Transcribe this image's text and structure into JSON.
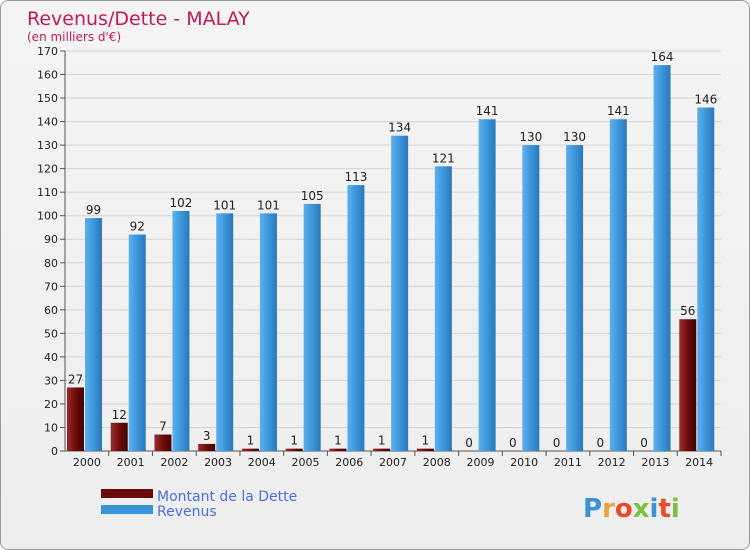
{
  "chart_data": {
    "type": "bar",
    "title": "Revenus/Dette - MALAY",
    "subtitle": "(en milliers d'€)",
    "categories": [
      "2000",
      "2001",
      "2002",
      "2003",
      "2004",
      "2005",
      "2006",
      "2007",
      "2008",
      "2009",
      "2010",
      "2011",
      "2012",
      "2013",
      "2014"
    ],
    "series": [
      {
        "name": "Montant de la Dette",
        "values": [
          27,
          12,
          7,
          3,
          1,
          1,
          1,
          1,
          1,
          0,
          0,
          0,
          0,
          0,
          56
        ],
        "color": "#6b0a0a"
      },
      {
        "name": "Revenus",
        "values": [
          99,
          92,
          102,
          101,
          101,
          105,
          113,
          134,
          121,
          141,
          130,
          130,
          141,
          164,
          146
        ],
        "color": "#3a93d8"
      }
    ],
    "ylim": [
      0,
      170
    ],
    "yticks": [
      0,
      10,
      20,
      30,
      40,
      50,
      60,
      70,
      80,
      90,
      100,
      110,
      120,
      130,
      140,
      150,
      160,
      170
    ],
    "grid": true,
    "legend_position": "bottom-left"
  },
  "brand": "Proxiti",
  "colors": {
    "title": "#c0195c",
    "subtitle": "#c0195c",
    "legend_text": "#4a6fe0",
    "grid": "#d4d4d4",
    "axis_text": "#222222"
  }
}
